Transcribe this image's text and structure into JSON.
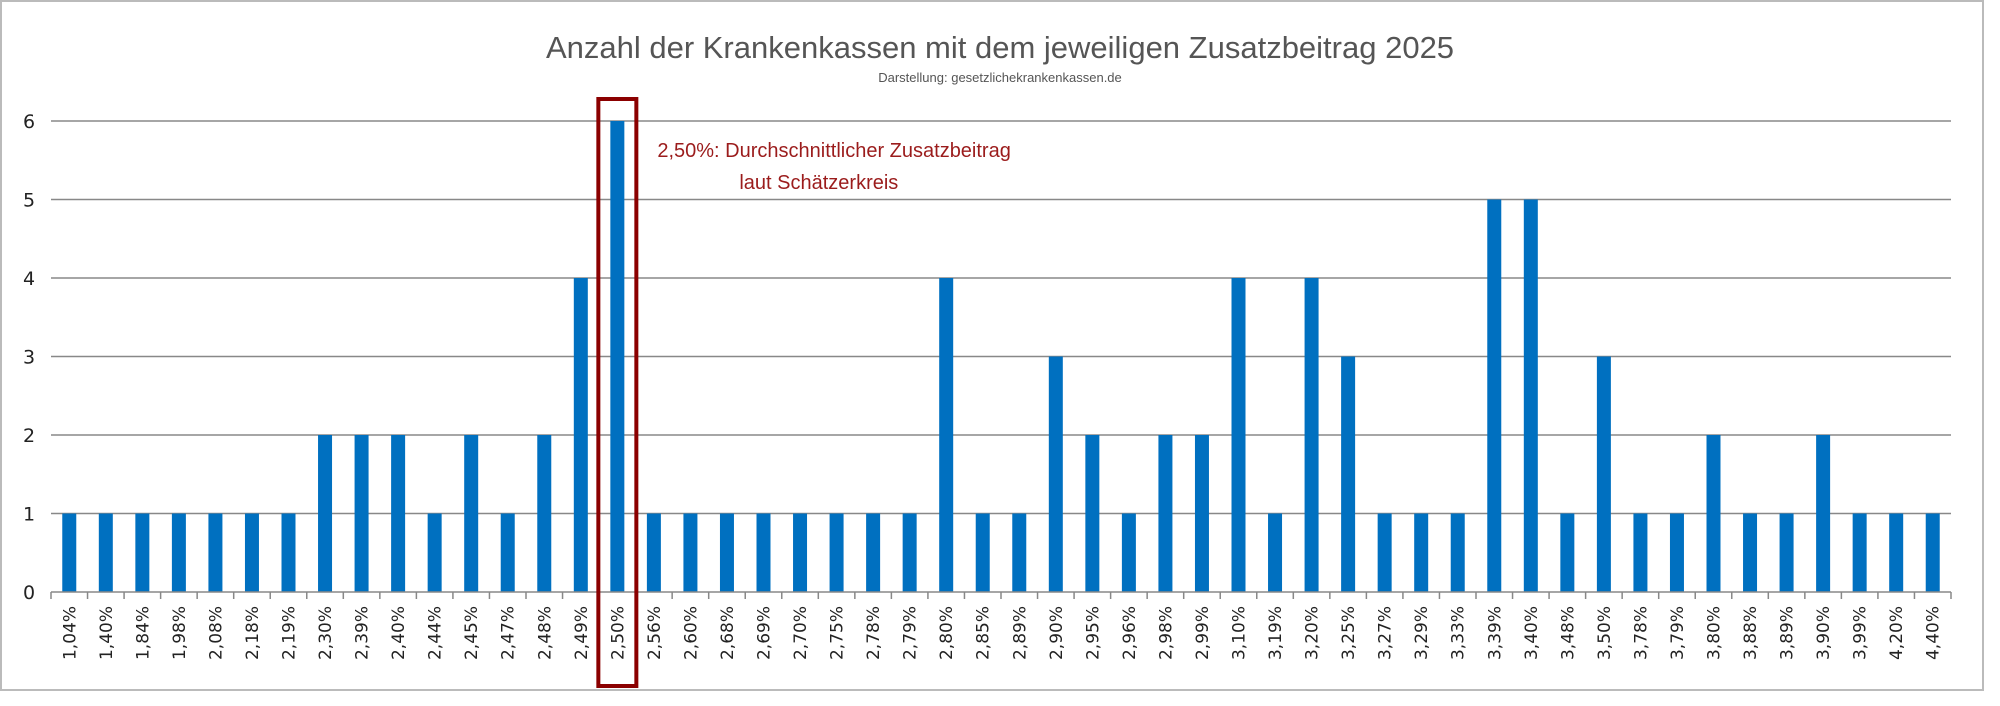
{
  "chart_data": {
    "type": "bar",
    "title": "Anzahl der Krankenkassen mit dem jeweiligen Zusatzbeitrag 2025",
    "subtitle": "Darstellung: gesetzlichekrankenkassen.de",
    "xlabel": "",
    "ylabel": "",
    "ylim": [
      0,
      6
    ],
    "yticks": [
      "0",
      "1",
      "2",
      "3",
      "4",
      "5",
      "6"
    ],
    "grid": true,
    "bar_color": "#0070c0",
    "highlight_color": "#8b0000",
    "highlight_category": "2,50%",
    "annotation": {
      "line1": "2,50%: Durchschnittlicher Zusatzbeitrag",
      "line2": "laut Schätzerkreis"
    },
    "categories": [
      "1,04%",
      "1,40%",
      "1,84%",
      "1,98%",
      "2,08%",
      "2,18%",
      "2,19%",
      "2,30%",
      "2,39%",
      "2,40%",
      "2,44%",
      "2,45%",
      "2,47%",
      "2,48%",
      "2,49%",
      "2,50%",
      "2,56%",
      "2,60%",
      "2,68%",
      "2,69%",
      "2,70%",
      "2,75%",
      "2,78%",
      "2,79%",
      "2,80%",
      "2,85%",
      "2,89%",
      "2,90%",
      "2,95%",
      "2,96%",
      "2,98%",
      "2,99%",
      "3,10%",
      "3,19%",
      "3,20%",
      "3,25%",
      "3,27%",
      "3,29%",
      "3,33%",
      "3,39%",
      "3,40%",
      "3,48%",
      "3,50%",
      "3,78%",
      "3,79%",
      "3,80%",
      "3,88%",
      "3,89%",
      "3,90%",
      "3,99%",
      "4,20%",
      "4,40%"
    ],
    "values": [
      1,
      1,
      1,
      1,
      1,
      1,
      1,
      2,
      2,
      2,
      1,
      2,
      1,
      2,
      4,
      6,
      1,
      1,
      1,
      1,
      1,
      1,
      1,
      1,
      4,
      1,
      1,
      3,
      2,
      1,
      2,
      2,
      4,
      1,
      4,
      3,
      1,
      1,
      1,
      5,
      5,
      1,
      3,
      1,
      1,
      2,
      1,
      1,
      2,
      1,
      1,
      1
    ]
  }
}
